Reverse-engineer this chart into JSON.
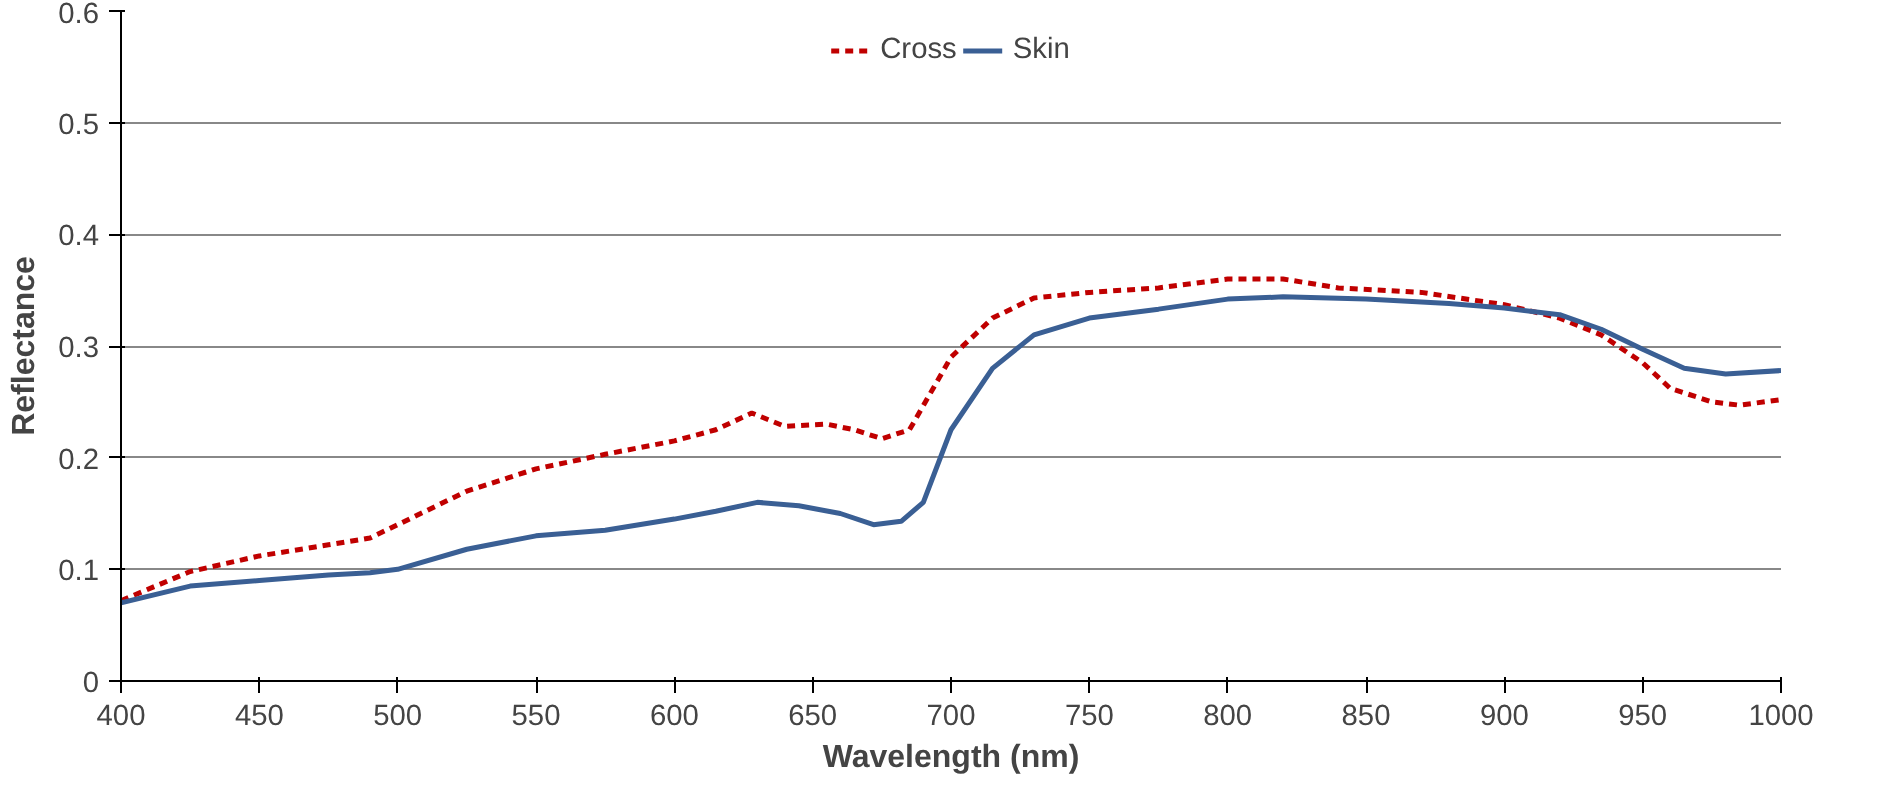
{
  "chart_data": {
    "type": "line",
    "xlabel": "Wavelength (nm)",
    "ylabel": "Reflectance",
    "xlim": [
      400,
      1000
    ],
    "xticks": [
      400,
      450,
      500,
      550,
      600,
      650,
      700,
      750,
      800,
      850,
      900,
      950,
      1000
    ],
    "ylim": [
      0,
      0.6
    ],
    "yticks": [
      0,
      0.1,
      0.2,
      0.3,
      0.4,
      0.5,
      0.6
    ],
    "grid": "y",
    "legend": "top",
    "marker": "none",
    "series": [
      {
        "name": "Cross",
        "color": "#c00000",
        "line_style": "dashed",
        "x": [
          400,
          425,
          450,
          475,
          490,
          500,
          525,
          550,
          575,
          600,
          615,
          628,
          640,
          655,
          665,
          675,
          685,
          700,
          715,
          730,
          750,
          775,
          800,
          820,
          840,
          870,
          900,
          920,
          935,
          950,
          960,
          975,
          985,
          1000
        ],
        "values": [
          0.072,
          0.098,
          0.112,
          0.122,
          0.128,
          0.14,
          0.17,
          0.19,
          0.203,
          0.215,
          0.225,
          0.24,
          0.228,
          0.23,
          0.225,
          0.217,
          0.225,
          0.29,
          0.325,
          0.343,
          0.348,
          0.352,
          0.36,
          0.36,
          0.352,
          0.348,
          0.337,
          0.325,
          0.31,
          0.285,
          0.262,
          0.25,
          0.247,
          0.252
        ]
      },
      {
        "name": "Skin",
        "color": "#3a5f94",
        "line_style": "solid",
        "x": [
          400,
          425,
          450,
          475,
          490,
          500,
          525,
          550,
          575,
          600,
          615,
          630,
          645,
          660,
          672,
          682,
          690,
          700,
          715,
          730,
          750,
          775,
          800,
          820,
          850,
          880,
          900,
          920,
          935,
          950,
          965,
          980,
          1000
        ],
        "values": [
          0.07,
          0.085,
          0.09,
          0.095,
          0.097,
          0.1,
          0.118,
          0.13,
          0.135,
          0.145,
          0.152,
          0.16,
          0.157,
          0.15,
          0.14,
          0.143,
          0.16,
          0.225,
          0.28,
          0.31,
          0.325,
          0.333,
          0.342,
          0.344,
          0.342,
          0.338,
          0.334,
          0.328,
          0.315,
          0.297,
          0.28,
          0.275,
          0.278
        ]
      }
    ]
  }
}
